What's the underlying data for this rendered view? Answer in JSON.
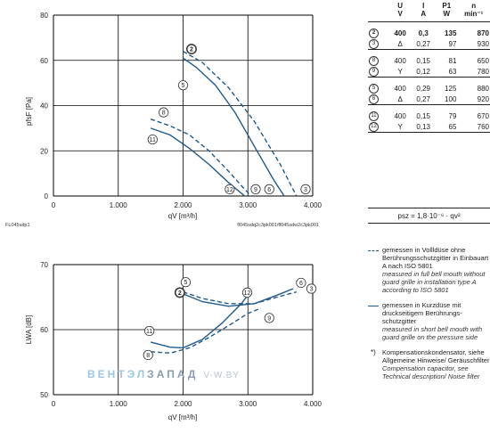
{
  "colors": {
    "curve": "#1f5a8c",
    "grid": "#000000",
    "watermark_a": "#9cc6e6",
    "watermark_b": "#8a9bb0"
  },
  "chart_data": [
    {
      "type": "line",
      "title": "",
      "xlabel": "qV [m³/h]",
      "ylabel": "pfsF [Pa]",
      "xlim": [
        0,
        4000
      ],
      "ylim": [
        0,
        80
      ],
      "xticks": [
        0,
        1000,
        2000,
        3000,
        4000
      ],
      "xtick_labels": [
        "0",
        "1.000",
        "2.000",
        "3.000",
        "4.000"
      ],
      "yticks": [
        0,
        20,
        40,
        60,
        80
      ],
      "ytick_labels": [
        "0",
        "20",
        "40",
        "60",
        "80"
      ],
      "grid": true,
      "footer_left": "FL045sdp1",
      "footer_right": "fl045sdq2c3pk001/fl045sdw2c3pk001",
      "series": [
        {
          "id": "2",
          "dashed": false,
          "points": [
            [
              2000,
              61
            ],
            [
              2200,
              57
            ],
            [
              2500,
              49
            ],
            [
              2800,
              37
            ],
            [
              3100,
              22
            ],
            [
              3400,
              7
            ],
            [
              3560,
              0
            ]
          ]
        },
        {
          "id": "3",
          "dashed": true,
          "points": [
            [
              2000,
              64
            ],
            [
              2300,
              59
            ],
            [
              2700,
              48
            ],
            [
              3100,
              33
            ],
            [
              3500,
              14
            ],
            [
              3750,
              0
            ]
          ]
        },
        {
          "id": "8",
          "dashed": true,
          "points": [
            [
              1500,
              34
            ],
            [
              1800,
              31
            ],
            [
              2100,
              27
            ],
            [
              2400,
              20
            ],
            [
              2700,
              11
            ],
            [
              2950,
              3
            ],
            [
              3050,
              0
            ]
          ]
        },
        {
          "id": "11",
          "dashed": false,
          "points": [
            [
              1500,
              30
            ],
            [
              1800,
              27
            ],
            [
              2100,
              21
            ],
            [
              2400,
              14
            ],
            [
              2700,
              6
            ],
            [
              2950,
              0
            ]
          ]
        }
      ],
      "markers": [
        {
          "id": "2",
          "x": 2130,
          "y": 65,
          "bold": true
        },
        {
          "id": "5",
          "x": 2000,
          "y": 49
        },
        {
          "id": "8",
          "x": 1700,
          "y": 37
        },
        {
          "id": "11",
          "x": 1530,
          "y": 25
        },
        {
          "id": "12",
          "x": 2720,
          "y": 3
        },
        {
          "id": "9",
          "x": 3120,
          "y": 3
        },
        {
          "id": "6",
          "x": 3330,
          "y": 3
        },
        {
          "id": "3",
          "x": 3890,
          "y": 3
        }
      ]
    },
    {
      "type": "line",
      "title": "",
      "xlabel": "qV [m³/h]",
      "ylabel": "LWA [dB]",
      "xlim": [
        0,
        4000
      ],
      "ylim": [
        50,
        70
      ],
      "xticks": [
        0,
        1000,
        2000,
        3000,
        4000
      ],
      "xtick_labels": [
        "0",
        "1.000",
        "2.000",
        "3.000",
        "4.000"
      ],
      "yticks": [
        50,
        60,
        70
      ],
      "ytick_labels": [
        "50",
        "60",
        "70"
      ],
      "grid": true,
      "series": [
        {
          "id": "2-5",
          "dashed": false,
          "points": [
            [
              2000,
              65.5
            ],
            [
              2300,
              64.3
            ],
            [
              2700,
              63.6
            ],
            [
              3100,
              64.0
            ],
            [
              3450,
              65.3
            ],
            [
              3700,
              66.3
            ]
          ]
        },
        {
          "id": "3-12",
          "dashed": true,
          "points": [
            [
              2000,
              65.8
            ],
            [
              2300,
              64.8
            ],
            [
              2700,
              64.0
            ],
            [
              3100,
              64.0
            ],
            [
              3450,
              65.0
            ],
            [
              3750,
              65.8
            ]
          ]
        },
        {
          "id": "8-9",
          "dashed": true,
          "points": [
            [
              1500,
              56.6
            ],
            [
              1800,
              56.4
            ],
            [
              2100,
              57.2
            ],
            [
              2400,
              58.8
            ],
            [
              2700,
              60.6
            ],
            [
              3000,
              62.5
            ],
            [
              3200,
              63.3
            ]
          ]
        },
        {
          "id": "11",
          "dashed": false,
          "points": [
            [
              1500,
              58.1
            ],
            [
              1800,
              57.3
            ],
            [
              2000,
              57.2
            ],
            [
              2300,
              58.5
            ],
            [
              2600,
              61.0
            ],
            [
              2900,
              64.0
            ],
            [
              3050,
              66.0
            ]
          ]
        }
      ],
      "markers": [
        {
          "id": "2",
          "x": 1950,
          "y": 65.7,
          "bold": true
        },
        {
          "id": "5",
          "x": 2040,
          "y": 67.3
        },
        {
          "id": "12",
          "x": 2990,
          "y": 65.7
        },
        {
          "id": "9",
          "x": 3330,
          "y": 61.8
        },
        {
          "id": "6",
          "x": 3820,
          "y": 67.2
        },
        {
          "id": "3",
          "x": 3980,
          "y": 66.3
        },
        {
          "id": "11",
          "x": 1480,
          "y": 59.8
        },
        {
          "id": "8",
          "x": 1460,
          "y": 56.1
        }
      ]
    }
  ],
  "spec_table": {
    "headers": [
      "U",
      "I",
      "P1",
      "n"
    ],
    "units": [
      "V",
      "A",
      "W",
      "min⁻¹"
    ],
    "groups": [
      [
        {
          "id": "2",
          "u": "400",
          "i": "0,3",
          "p": "135",
          "n": "870",
          "bold": true
        },
        {
          "id": "3",
          "u": "Δ",
          "i": "0,27",
          "p": "97",
          "n": "930"
        }
      ],
      [
        {
          "id": "8",
          "u": "400",
          "i": "0,15",
          "p": "81",
          "n": "650"
        },
        {
          "id": "9",
          "u": "Y",
          "i": "0,12",
          "p": "63",
          "n": "780"
        }
      ],
      [
        {
          "id": "5",
          "u": "400",
          "i": "0,29",
          "p": "125",
          "n": "880"
        },
        {
          "id": "6",
          "u": "Δ",
          "i": "0,27",
          "p": "100",
          "n": "920"
        }
      ],
      [
        {
          "id": "11",
          "u": "400",
          "i": "0,15",
          "p": "79",
          "n": "670"
        },
        {
          "id": "12",
          "u": "Y",
          "i": "0,13",
          "p": "65",
          "n": "760"
        }
      ]
    ]
  },
  "formula": "psz = 1,8·10⁻⁶ · qv²",
  "legend": {
    "dashed_de": "gemessen in Vollldüse ohne Berührungsschutzgitter in Einbauart A nach ISO 5801",
    "dashed_en": "measured in full bell mouth without guard grille in installation type A according to ISO 5801",
    "solid_de": "gemessen in Kurzdüse mit druckseitigem Berührungs-schutzgitter",
    "solid_en": "measured in short bell mouth with guard grille on the pressure side",
    "note_mark": "*)",
    "note_de": "Kompensationskondensator, siehe Allgemeine Hinweise/ Geräuschfilter",
    "note_en": "Compensation capacitor, see Technical description/ Noise filter"
  },
  "watermark": {
    "part1": "ВЕНТЭЛ",
    "part2": "ЗАПАД",
    "part3": "V-W.BY"
  }
}
